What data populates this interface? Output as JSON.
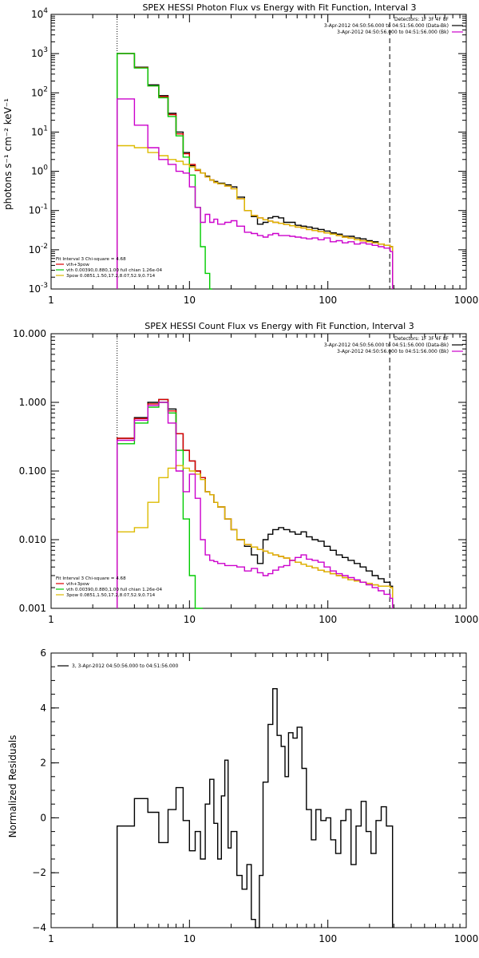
{
  "chart_data": [
    {
      "type": "line",
      "title": "SPEX HESSI Photon Flux vs Energy with Fit Function, Interval 3",
      "xlabel": "",
      "ylabel": "photons s⁻¹ cm⁻² keV⁻¹",
      "x_scale": "log",
      "y_scale": "log",
      "xlim": [
        1,
        1000
      ],
      "ylim": [
        0.001,
        10000
      ],
      "x_ticks": [
        1,
        10,
        100,
        1000
      ],
      "x_tick_labels": [
        "1",
        "10",
        "100",
        "1000"
      ],
      "y_ticks": [
        0.001,
        0.01,
        0.1,
        1,
        10,
        100,
        1000,
        10000
      ],
      "y_tick_labels": [
        {
          "base": "10",
          "exp": "-3"
        },
        {
          "base": "10",
          "exp": "-2"
        },
        {
          "base": "10",
          "exp": "-1"
        },
        {
          "base": "10",
          "exp": "0"
        },
        {
          "base": "10",
          "exp": "1"
        },
        {
          "base": "10",
          "exp": "2"
        },
        {
          "base": "10",
          "exp": "3"
        },
        {
          "base": "10",
          "exp": "4"
        }
      ],
      "vlines": [
        {
          "x": 3,
          "style": "dotted"
        },
        {
          "x": 280,
          "style": "dashed"
        }
      ],
      "legend_top": [
        "Detectors: 1F 3F 4F 8F",
        "3-Apr-2012 04:50:56.000 to 04:51:56.000 (Data-Bk)",
        "3-Apr-2012 04:50:56.000 to 04:51:56.000 (Bk)"
      ],
      "legend_top_colors": [
        "",
        "#000000",
        "#cc00cc"
      ],
      "legend_bottom": [
        "Fit Interval 3   Chi-square = 4.68",
        "vth+3pow",
        "vth 0.00390,0.880,1.00  full chian 1.26e-04",
        "3pow 0.0851,1.50,17.2,8.07,52.9,0.714"
      ],
      "legend_bottom_colors": [
        "",
        "#dd0000",
        "#00cc00",
        "#ddbb00"
      ],
      "series": [
        {
          "color": "#000000",
          "x": [
            3,
            4,
            5,
            6,
            7,
            8,
            9,
            10,
            11,
            12,
            13,
            14,
            15,
            16,
            18,
            20,
            22,
            25,
            28,
            31,
            34,
            37,
            40,
            44,
            48,
            53,
            58,
            64,
            70,
            77,
            85,
            94,
            104,
            115,
            127,
            140,
            155,
            171,
            189,
            209,
            231,
            255,
            282
          ],
          "y": [
            1000,
            450,
            160,
            85,
            30,
            10,
            3,
            1.4,
            1.1,
            0.9,
            0.75,
            0.6,
            0.55,
            0.5,
            0.45,
            0.4,
            0.22,
            0.1,
            0.07,
            0.045,
            0.05,
            0.065,
            0.07,
            0.065,
            0.05,
            0.05,
            0.042,
            0.04,
            0.038,
            0.035,
            0.033,
            0.03,
            0.027,
            0.025,
            0.022,
            0.022,
            0.02,
            0.019,
            0.017,
            0.016,
            0.014,
            0.013,
            0.012
          ]
        },
        {
          "color": "#dd0000",
          "x": [
            3,
            4,
            5,
            6,
            7,
            8,
            9,
            10,
            11,
            12,
            13,
            14,
            15,
            16,
            18,
            20,
            22,
            25,
            28,
            31,
            34,
            37,
            40,
            44,
            48,
            53,
            58,
            64,
            70,
            77,
            85,
            94,
            104,
            115,
            127,
            140,
            155,
            171,
            189,
            209,
            231,
            255,
            282
          ],
          "y": [
            1000,
            440,
            150,
            80,
            28,
            9,
            2.8,
            1.5,
            1.05,
            0.9,
            0.72,
            0.6,
            0.52,
            0.48,
            0.42,
            0.36,
            0.2,
            0.1,
            0.075,
            0.065,
            0.058,
            0.054,
            0.05,
            0.047,
            0.044,
            0.041,
            0.038,
            0.036,
            0.033,
            0.031,
            0.029,
            0.027,
            0.025,
            0.023,
            0.021,
            0.02,
            0.018,
            0.017,
            0.016,
            0.015,
            0.014,
            0.013,
            0.012
          ]
        },
        {
          "color": "#00cc00",
          "x": [
            3,
            4,
            5,
            6,
            7,
            8,
            9,
            10,
            11,
            12,
            13,
            14
          ],
          "y": [
            1000,
            430,
            150,
            75,
            25,
            8,
            2.3,
            0.8,
            0.12,
            0.012,
            0.0025,
            0.0008
          ]
        },
        {
          "color": "#ddbb00",
          "x": [
            3,
            4,
            5,
            6,
            7,
            8,
            9,
            10,
            11,
            12,
            13,
            14,
            15,
            16,
            18,
            20,
            22,
            25,
            28,
            31,
            34,
            37,
            40,
            44,
            48,
            53,
            58,
            64,
            70,
            77,
            85,
            94,
            104,
            115,
            127,
            140,
            155,
            171,
            189,
            209,
            231,
            255,
            282
          ],
          "y": [
            4.5,
            4,
            3,
            2.5,
            2,
            1.8,
            1.5,
            1.3,
            1.1,
            0.9,
            0.72,
            0.6,
            0.52,
            0.48,
            0.42,
            0.36,
            0.2,
            0.1,
            0.075,
            0.065,
            0.058,
            0.054,
            0.05,
            0.047,
            0.044,
            0.041,
            0.038,
            0.036,
            0.033,
            0.031,
            0.029,
            0.027,
            0.025,
            0.023,
            0.021,
            0.02,
            0.018,
            0.017,
            0.016,
            0.015,
            0.014,
            0.013,
            0.012
          ]
        },
        {
          "color": "#cc00cc",
          "x": [
            3,
            4,
            5,
            6,
            7,
            8,
            9,
            10,
            11,
            12,
            13,
            14,
            15,
            16,
            18,
            20,
            22,
            25,
            28,
            31,
            34,
            37,
            40,
            44,
            48,
            53,
            58,
            64,
            70,
            77,
            85,
            94,
            104,
            115,
            127,
            140,
            155,
            171,
            189,
            209,
            231,
            255,
            282
          ],
          "y": [
            70,
            15,
            4,
            2,
            1.5,
            1,
            0.9,
            0.4,
            0.12,
            0.05,
            0.08,
            0.05,
            0.06,
            0.045,
            0.05,
            0.055,
            0.04,
            0.028,
            0.026,
            0.023,
            0.021,
            0.024,
            0.026,
            0.023,
            0.023,
            0.022,
            0.021,
            0.02,
            0.019,
            0.02,
            0.018,
            0.02,
            0.016,
            0.017,
            0.015,
            0.016,
            0.014,
            0.015,
            0.014,
            0.013,
            0.012,
            0.011,
            0.009
          ]
        }
      ]
    },
    {
      "type": "line",
      "title": "SPEX HESSI Count Flux vs Energy with Fit Function, Interval 3",
      "xlabel": "",
      "ylabel": "",
      "x_scale": "log",
      "y_scale": "log",
      "xlim": [
        1,
        1000
      ],
      "ylim": [
        0.001,
        10
      ],
      "x_ticks": [
        1,
        10,
        100,
        1000
      ],
      "x_tick_labels": [
        "1",
        "10",
        "100",
        "1000"
      ],
      "y_ticks": [
        0.001,
        0.01,
        0.1,
        1,
        10
      ],
      "y_tick_labels": [
        "0.001",
        "0.010",
        "0.100",
        "1.000",
        "10.000"
      ],
      "vlines": [
        {
          "x": 3,
          "style": "dotted"
        },
        {
          "x": 280,
          "style": "dashed"
        }
      ],
      "legend_top": [
        "Detectors: 1F 3F 4F 8F",
        "3-Apr-2012 04:50:56.000 to 04:51:56.000 (Data-Bk)",
        "3-Apr-2012 04:50:56.000 to 04:51:56.000 (Bk)"
      ],
      "legend_top_colors": [
        "",
        "#000000",
        "#cc00cc"
      ],
      "legend_bottom": [
        "Fit Interval 3   Chi-square = 4.68",
        "vth+3pow",
        "vth 0.00390,0.880,1.00  full chian 1.26e-04",
        "3pow 0.0851,1.50,17.2,8.07,52.9,0.714"
      ],
      "legend_bottom_colors": [
        "",
        "#dd0000",
        "#00cc00",
        "#ddbb00"
      ],
      "series": [
        {
          "color": "#000000",
          "x": [
            3,
            4,
            5,
            6,
            7,
            8,
            9,
            10,
            11,
            12,
            13,
            14,
            15,
            16,
            18,
            20,
            22,
            25,
            28,
            31,
            34,
            37,
            40,
            44,
            48,
            53,
            58,
            64,
            70,
            77,
            85,
            94,
            104,
            115,
            127,
            140,
            155,
            171,
            189,
            209,
            231,
            255,
            282
          ],
          "y": [
            0.3,
            0.6,
            1.0,
            1.1,
            0.8,
            0.35,
            0.2,
            0.14,
            0.1,
            0.08,
            0.05,
            0.045,
            0.035,
            0.03,
            0.02,
            0.014,
            0.01,
            0.008,
            0.006,
            0.0045,
            0.01,
            0.012,
            0.014,
            0.015,
            0.014,
            0.013,
            0.012,
            0.013,
            0.011,
            0.01,
            0.0095,
            0.008,
            0.007,
            0.006,
            0.0055,
            0.005,
            0.0045,
            0.004,
            0.0035,
            0.003,
            0.0027,
            0.0024,
            0.0021
          ]
        },
        {
          "color": "#dd0000",
          "x": [
            3,
            4,
            5,
            6,
            7,
            8,
            9,
            10,
            11,
            12,
            13,
            14,
            15,
            16,
            18,
            20,
            22,
            25,
            28,
            31,
            34,
            37,
            40,
            44,
            48,
            53,
            58,
            64,
            70,
            77,
            85,
            94,
            104,
            115,
            127,
            140,
            155,
            171,
            189,
            209,
            231,
            255,
            282
          ],
          "y": [
            0.3,
            0.58,
            0.95,
            1.1,
            0.75,
            0.35,
            0.2,
            0.14,
            0.1,
            0.08,
            0.05,
            0.045,
            0.035,
            0.03,
            0.02,
            0.014,
            0.01,
            0.0085,
            0.0078,
            0.0072,
            0.0068,
            0.0064,
            0.006,
            0.0057,
            0.0054,
            0.005,
            0.0047,
            0.0044,
            0.0041,
            0.0039,
            0.0036,
            0.0034,
            0.0032,
            0.003,
            0.0028,
            0.0026,
            0.0025,
            0.0024,
            0.0023,
            0.0022,
            0.0021,
            0.0021,
            0.002
          ]
        },
        {
          "color": "#00cc00",
          "x": [
            3,
            4,
            5,
            6,
            7,
            8,
            9,
            10,
            11,
            12
          ],
          "y": [
            0.25,
            0.5,
            0.85,
            1.0,
            0.7,
            0.2,
            0.02,
            0.003,
            0.001,
            0.0008
          ]
        },
        {
          "color": "#ddbb00",
          "x": [
            3,
            4,
            5,
            6,
            7,
            8,
            9,
            10,
            11,
            12,
            13,
            14,
            15,
            16,
            18,
            20,
            22,
            25,
            28,
            31,
            34,
            37,
            40,
            44,
            48,
            53,
            58,
            64,
            70,
            77,
            85,
            94,
            104,
            115,
            127,
            140,
            155,
            171,
            189,
            209,
            231,
            255,
            282
          ],
          "y": [
            0.013,
            0.015,
            0.035,
            0.08,
            0.11,
            0.12,
            0.11,
            0.1,
            0.09,
            0.075,
            0.05,
            0.045,
            0.035,
            0.03,
            0.02,
            0.014,
            0.01,
            0.0085,
            0.0078,
            0.0072,
            0.0068,
            0.0064,
            0.006,
            0.0057,
            0.0054,
            0.005,
            0.0047,
            0.0044,
            0.0041,
            0.0039,
            0.0036,
            0.0034,
            0.0032,
            0.003,
            0.0028,
            0.0026,
            0.0025,
            0.0024,
            0.0023,
            0.0022,
            0.0021,
            0.0021,
            0.002
          ]
        },
        {
          "color": "#cc00cc",
          "x": [
            3,
            4,
            5,
            6,
            7,
            8,
            9,
            10,
            11,
            12,
            13,
            14,
            15,
            16,
            18,
            20,
            22,
            25,
            28,
            31,
            34,
            37,
            40,
            44,
            48,
            53,
            58,
            64,
            70,
            77,
            85,
            94,
            104,
            115,
            127,
            140,
            155,
            171,
            189,
            209,
            231,
            255,
            282
          ],
          "y": [
            0.28,
            0.55,
            0.9,
            1.0,
            0.5,
            0.1,
            0.05,
            0.09,
            0.04,
            0.01,
            0.006,
            0.005,
            0.0048,
            0.0045,
            0.0042,
            0.0042,
            0.004,
            0.0035,
            0.0038,
            0.0033,
            0.003,
            0.0032,
            0.0036,
            0.004,
            0.0042,
            0.005,
            0.0055,
            0.006,
            0.0052,
            0.005,
            0.0047,
            0.004,
            0.0035,
            0.0032,
            0.003,
            0.0028,
            0.0026,
            0.0024,
            0.0022,
            0.002,
            0.0018,
            0.0016,
            0.0014
          ]
        }
      ]
    },
    {
      "type": "line",
      "title": "",
      "xlabel": "",
      "ylabel": "Normalized Residuals",
      "x_scale": "log",
      "y_scale": "linear",
      "xlim": [
        1,
        1000
      ],
      "ylim": [
        -4,
        6
      ],
      "x_ticks": [
        1,
        10,
        100,
        1000
      ],
      "x_tick_labels": [
        "1",
        "10",
        "100",
        "1000"
      ],
      "y_ticks": [
        -4,
        -2,
        0,
        2,
        4,
        6
      ],
      "y_tick_labels": [
        "−4",
        "−2",
        "0",
        "2",
        "4",
        "6"
      ],
      "legend_top_left": "3,  3-Apr-2012 04:50:56.000 to 04:51:56.000",
      "series": [
        {
          "color": "#000000",
          "x": [
            3,
            4,
            5,
            6,
            7,
            8,
            9,
            10,
            11,
            12,
            13,
            14,
            15,
            16,
            17,
            18,
            19,
            20,
            22,
            24,
            26,
            28,
            30,
            32,
            34,
            37,
            40,
            43,
            46,
            49,
            52,
            56,
            60,
            65,
            70,
            76,
            82,
            89,
            97,
            105,
            114,
            124,
            135,
            147,
            160,
            174,
            189,
            205,
            223,
            243,
            265,
            282
          ],
          "y": [
            -0.3,
            0.7,
            0.2,
            -0.9,
            0.3,
            1.1,
            -0.1,
            -1.2,
            -0.5,
            -1.5,
            0.5,
            1.4,
            -0.2,
            -1.5,
            0.8,
            2.1,
            -1.1,
            -0.5,
            -2.1,
            -2.6,
            -1.7,
            -3.7,
            -4.1,
            -2.1,
            1.3,
            3.4,
            4.7,
            3.0,
            2.6,
            1.5,
            3.1,
            2.9,
            3.3,
            1.8,
            0.3,
            -0.8,
            0.3,
            -0.1,
            0.0,
            -0.8,
            -1.3,
            -0.1,
            0.3,
            -1.7,
            -0.3,
            0.6,
            -0.5,
            -1.3,
            -0.1,
            0.4,
            -0.3,
            -0.3
          ]
        }
      ]
    }
  ]
}
